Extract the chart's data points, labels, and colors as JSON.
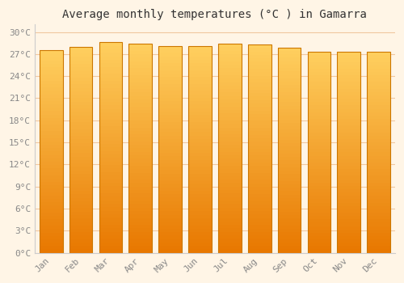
{
  "title": "Average monthly temperatures (°C ) in Gamarra",
  "months": [
    "Jan",
    "Feb",
    "Mar",
    "Apr",
    "May",
    "Jun",
    "Jul",
    "Aug",
    "Sep",
    "Oct",
    "Nov",
    "Dec"
  ],
  "values": [
    27.5,
    28.0,
    28.6,
    28.4,
    28.1,
    28.1,
    28.4,
    28.3,
    27.9,
    27.3,
    27.3,
    27.3
  ],
  "ylim": [
    0,
    31
  ],
  "yticks": [
    0,
    3,
    6,
    9,
    12,
    15,
    18,
    21,
    24,
    27,
    30
  ],
  "bar_color_bottom": "#E87800",
  "bar_color_top": "#FFD060",
  "bar_edge_color": "#CC7700",
  "background_color": "#FFF5E6",
  "plot_bg_color": "#FFF5E6",
  "grid_color": "#F0C8A0",
  "title_fontsize": 10,
  "tick_fontsize": 8,
  "title_color": "#333333",
  "tick_color": "#888888"
}
